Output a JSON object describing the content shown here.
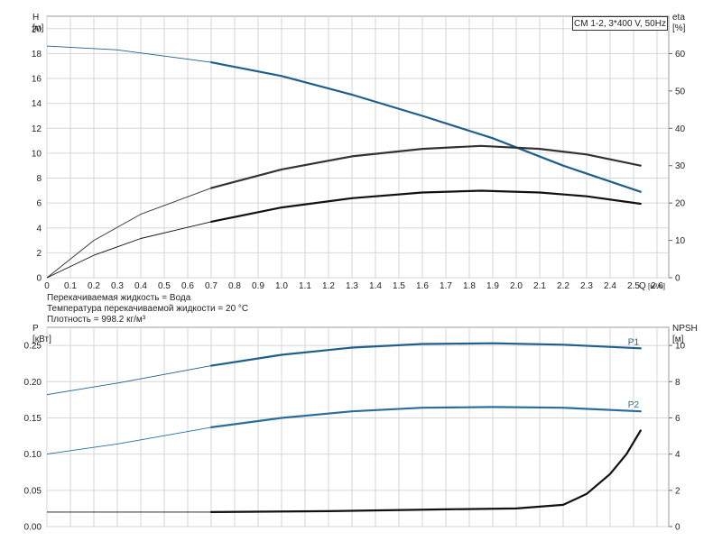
{
  "chart_data": [
    {
      "type": "line",
      "title": "CM 1-2, 3*400 V, 50Hz",
      "ylabel": "H",
      "ylabel_unit": "[м]",
      "y2label": "eta",
      "y2label_unit": "[%]",
      "xlabel": "Q",
      "xlabel_unit": "[м³/ч]",
      "xlim": [
        0,
        2.65
      ],
      "ylim": [
        0,
        21
      ],
      "y2lim": [
        0,
        70
      ],
      "x_ticks": [
        "0",
        "0.1",
        "0.2",
        "0.3",
        "0.4",
        "0.5",
        "0.6",
        "0.7",
        "0.8",
        "0.9",
        "1.0",
        "1.1",
        "1.2",
        "1.3",
        "1.4",
        "1.5",
        "1.6",
        "1.7",
        "1.8",
        "1.9",
        "2.0",
        "2.1",
        "2.2",
        "2.3",
        "2.4",
        "2.5",
        "2.6"
      ],
      "y_ticks": [
        "0",
        "2",
        "4",
        "6",
        "8",
        "10",
        "12",
        "14",
        "16",
        "18",
        "20"
      ],
      "y2_ticks": [
        "0",
        "10",
        "20",
        "30",
        "40",
        "50",
        "60"
      ],
      "grid": true,
      "series": [
        {
          "key": "H",
          "axis": "left",
          "color": "#1f5f8b",
          "x": [
            0,
            0.3,
            0.7,
            1.0,
            1.3,
            1.6,
            1.9,
            2.2,
            2.53
          ],
          "values": [
            18.6,
            18.3,
            17.3,
            16.2,
            14.7,
            13.0,
            11.2,
            9.0,
            6.9
          ]
        },
        {
          "key": "eta_total",
          "axis": "right",
          "color": "#333333",
          "x": [
            0,
            0.2,
            0.4,
            0.7,
            1.0,
            1.3,
            1.6,
            1.85,
            2.1,
            2.3,
            2.53
          ],
          "values": [
            0,
            10,
            17,
            24,
            29,
            32.5,
            34.5,
            35.3,
            34.5,
            33,
            30
          ]
        },
        {
          "key": "eta_pump",
          "axis": "right",
          "color": "#111111",
          "x": [
            0,
            0.2,
            0.4,
            0.7,
            1.0,
            1.3,
            1.6,
            1.85,
            2.1,
            2.3,
            2.53
          ],
          "values": [
            0,
            6,
            10.5,
            15,
            18.8,
            21.3,
            22.8,
            23.3,
            22.8,
            21.8,
            19.8
          ]
        }
      ],
      "notes": [
        "Перекачиваемая жидкость = Вода",
        "Температура перекачиваемой жидкости = 20 °C",
        "Плотность = 998.2 кг/м³"
      ]
    },
    {
      "type": "line",
      "ylabel": "P",
      "ylabel_unit": "[кВт]",
      "y2label": "NPSH",
      "y2label_unit": "[м]",
      "xlim": [
        0,
        2.65
      ],
      "ylim": [
        0,
        0.275
      ],
      "y2lim": [
        0,
        11
      ],
      "y_ticks": [
        "0.00",
        "0.05",
        "0.10",
        "0.15",
        "0.20",
        "0.25"
      ],
      "y2_ticks": [
        "0",
        "2",
        "4",
        "6",
        "8",
        "10"
      ],
      "grid": true,
      "series": [
        {
          "name": "P1",
          "axis": "left",
          "color": "#1f5f8b",
          "x": [
            0,
            0.3,
            0.7,
            1.0,
            1.3,
            1.6,
            1.9,
            2.2,
            2.53
          ],
          "values": [
            0.182,
            0.198,
            0.222,
            0.237,
            0.247,
            0.252,
            0.253,
            0.251,
            0.246
          ]
        },
        {
          "name": "P2",
          "axis": "left",
          "color": "#2a6d9c",
          "x": [
            0,
            0.3,
            0.7,
            1.0,
            1.3,
            1.6,
            1.9,
            2.2,
            2.53
          ],
          "values": [
            0.1,
            0.114,
            0.137,
            0.15,
            0.159,
            0.164,
            0.165,
            0.164,
            0.159
          ]
        },
        {
          "key": "NPSH",
          "axis": "right",
          "color": "#111111",
          "x": [
            0,
            0.4,
            0.7,
            1.2,
            1.7,
            2.0,
            2.2,
            2.3,
            2.4,
            2.47,
            2.53
          ],
          "values": [
            0.8,
            0.8,
            0.8,
            0.85,
            0.95,
            1.0,
            1.2,
            1.8,
            2.9,
            4.0,
            5.3
          ]
        }
      ]
    }
  ]
}
